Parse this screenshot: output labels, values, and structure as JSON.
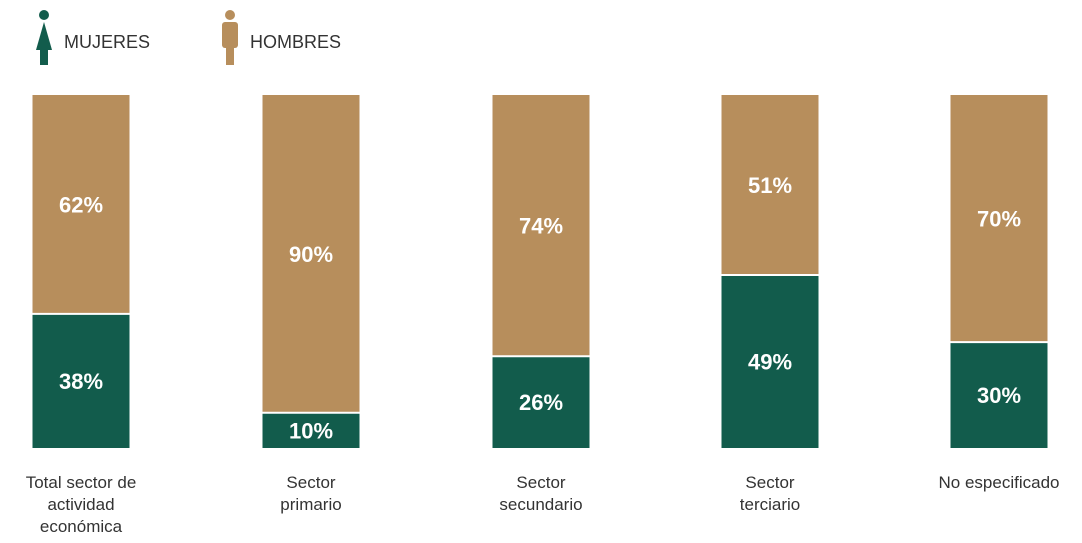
{
  "legend": {
    "women_label": "MUJERES",
    "men_label": "HOMBRES",
    "women_icon": "woman-icon",
    "men_icon": "man-icon"
  },
  "colors": {
    "women": "#125C4C",
    "men": "#B78E5C",
    "bar_label": "#FFFFFF",
    "text": "#333333"
  },
  "chart_data": {
    "type": "bar",
    "stacked": true,
    "percent": true,
    "ylim": [
      0,
      100
    ],
    "categories": [
      [
        "Total sector de",
        "actividad",
        "económica"
      ],
      [
        "Sector",
        "primario"
      ],
      [
        "Sector",
        "secundario"
      ],
      [
        "Sector",
        "terciario"
      ],
      [
        "No especificado"
      ]
    ],
    "series": [
      {
        "name": "MUJERES",
        "values": [
          38,
          10,
          26,
          49,
          30
        ],
        "labels": [
          "38%",
          "10%",
          "26%",
          "49%",
          "30%"
        ]
      },
      {
        "name": "HOMBRES",
        "values": [
          62,
          90,
          74,
          51,
          70
        ],
        "labels": [
          "62%",
          "90%",
          "74%",
          "51%",
          "70%"
        ]
      }
    ]
  }
}
